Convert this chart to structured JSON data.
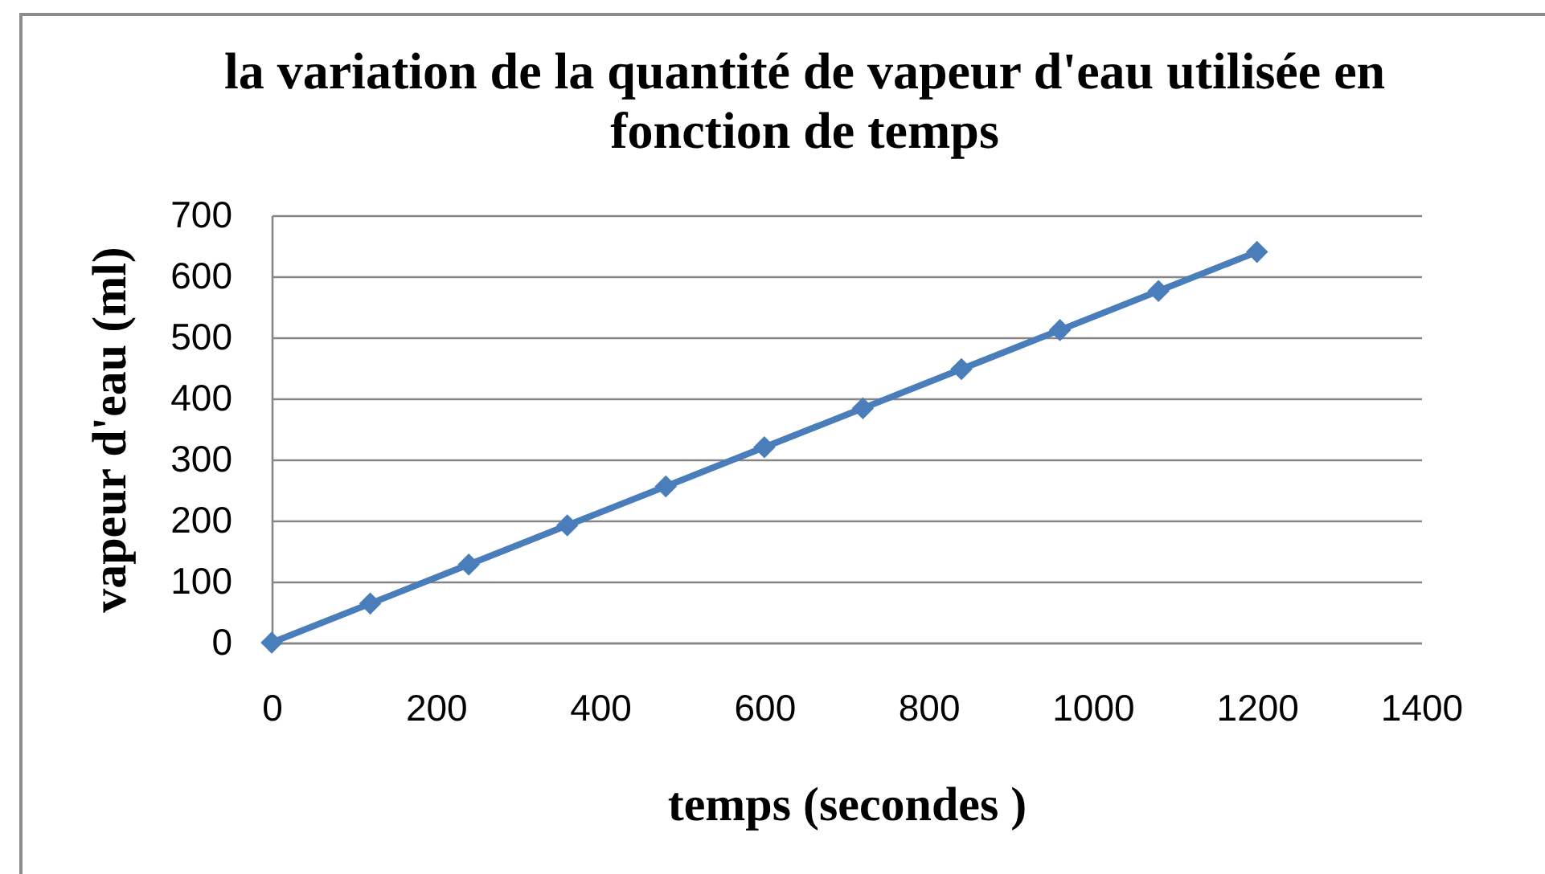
{
  "chart_data": {
    "type": "line",
    "title": "la variation de la quantité de vapeur d'eau utilisée en fonction de temps",
    "xlabel": "temps (secondes )",
    "ylabel": "vapeur d'eau (ml)",
    "x": [
      0,
      120,
      240,
      360,
      480,
      600,
      720,
      840,
      960,
      1080,
      1200
    ],
    "series": [
      {
        "color": "#4a7ebb",
        "values": [
          0,
          64,
          128,
          192,
          256,
          320,
          384,
          448,
          512,
          576,
          640
        ]
      }
    ],
    "xlim": [
      0,
      1400
    ],
    "xticks": [
      0,
      200,
      400,
      600,
      800,
      1000,
      1200,
      1400
    ],
    "ylim": [
      0,
      700
    ],
    "yticks": [
      0,
      100,
      200,
      300,
      400,
      500,
      600,
      700
    ],
    "grid": "y",
    "marker": "diamond",
    "line_style": "solid"
  }
}
